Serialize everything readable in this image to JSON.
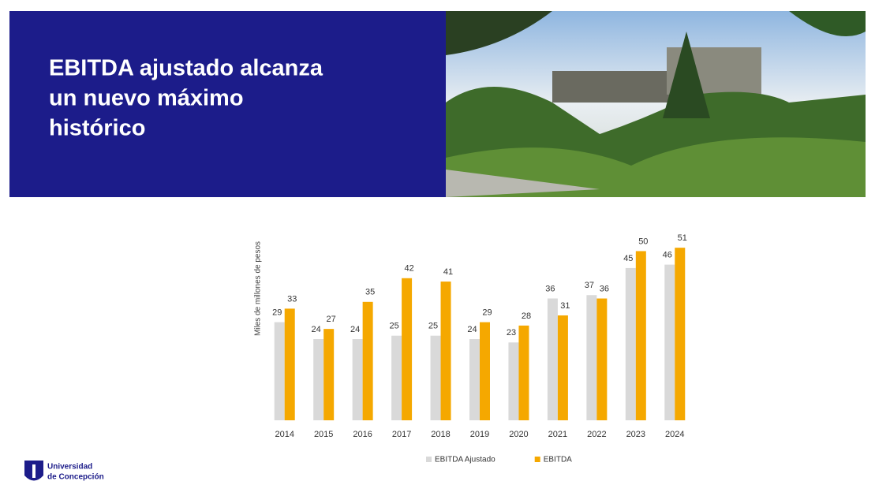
{
  "title": [
    "EBITDA ajustado alcanza",
    "un nuevo máximo",
    "histórico"
  ],
  "logo": [
    "Universidad",
    "de Concepción"
  ],
  "chart_data": {
    "type": "bar",
    "y_label": "Miles de millones de pesos",
    "categories": [
      "2014",
      "2015",
      "2016",
      "2017",
      "2018",
      "2019",
      "2020",
      "2021",
      "2022",
      "2023",
      "2024"
    ],
    "series": [
      {
        "name": "EBITDA Ajustado",
        "color": "#d9d9d9",
        "values": [
          29,
          24,
          24,
          25,
          25,
          24,
          23,
          36,
          37,
          45,
          46
        ]
      },
      {
        "name": "EBITDA",
        "color": "#f5a800",
        "values": [
          33,
          27,
          35,
          42,
          41,
          29,
          28,
          31,
          36,
          50,
          51
        ]
      }
    ],
    "ylim": [
      0,
      55
    ],
    "legend": "bottom"
  }
}
